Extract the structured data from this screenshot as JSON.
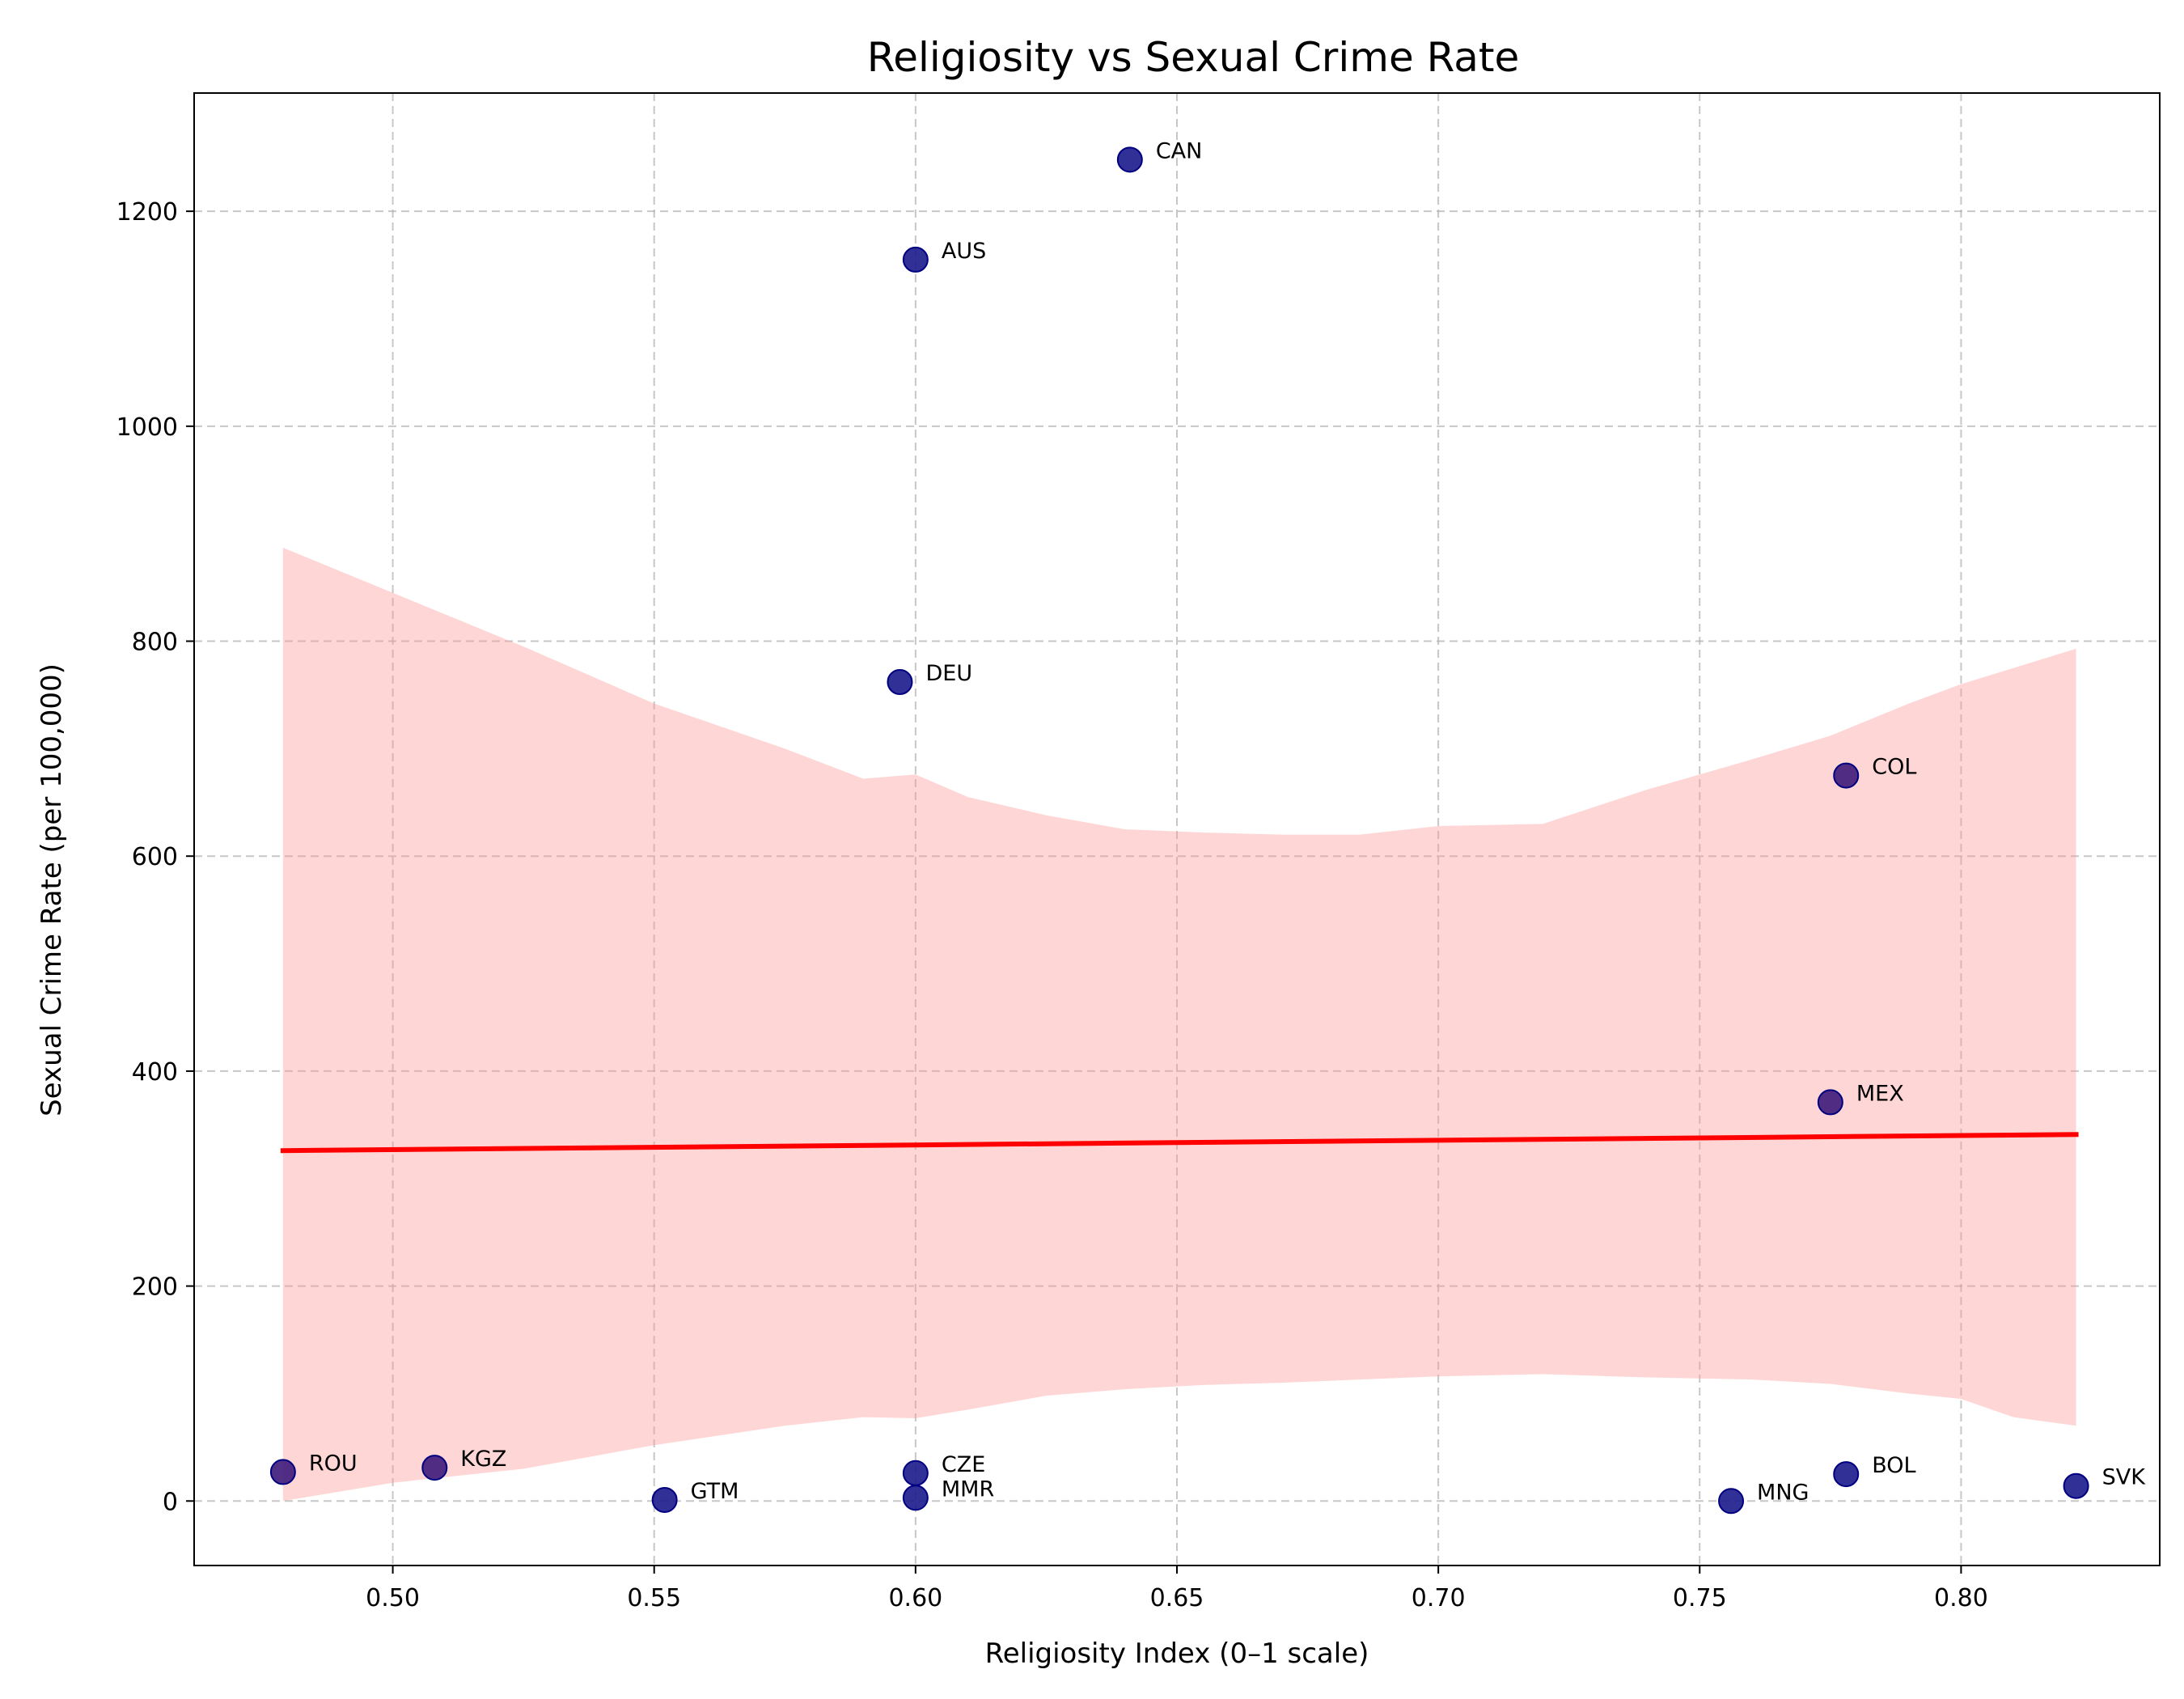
{
  "chart_data": {
    "type": "scatter",
    "title": "Religiosity vs Sexual Crime Rate",
    "xlabel": "Religiosity Index (0–1 scale)",
    "ylabel": "Sexual Crime Rate (per 100,000)",
    "xlim": [
      0.462,
      0.838
    ],
    "ylim": [
      -60,
      1310
    ],
    "xticks": [
      0.5,
      0.55,
      0.6,
      0.65,
      0.7,
      0.75,
      0.8
    ],
    "xtick_labels": [
      "0.50",
      "0.55",
      "0.60",
      "0.65",
      "0.70",
      "0.75",
      "0.80"
    ],
    "yticks": [
      0,
      200,
      400,
      600,
      800,
      1000,
      1200
    ],
    "ytick_labels": [
      "0",
      "200",
      "400",
      "600",
      "800",
      "1000",
      "1200"
    ],
    "grid": true,
    "points": [
      {
        "label": "CAN",
        "x": 0.641,
        "y": 1248,
        "color": "#1a1a8c"
      },
      {
        "label": "AUS",
        "x": 0.6,
        "y": 1155,
        "color": "#1a1a8c"
      },
      {
        "label": "DEU",
        "x": 0.597,
        "y": 762,
        "color": "#1a1a8c"
      },
      {
        "label": "COL",
        "x": 0.778,
        "y": 675,
        "color": "#3d1a7a"
      },
      {
        "label": "MEX",
        "x": 0.775,
        "y": 371,
        "color": "#3d1a7a"
      },
      {
        "label": "ROU",
        "x": 0.479,
        "y": 27,
        "color": "#3d1a7a"
      },
      {
        "label": "KGZ",
        "x": 0.508,
        "y": 31,
        "color": "#3d1a7a"
      },
      {
        "label": "GTM",
        "x": 0.552,
        "y": 1,
        "color": "#1a1a8c"
      },
      {
        "label": "CZE",
        "x": 0.6,
        "y": 26,
        "color": "#1a1a8c"
      },
      {
        "label": "MMR",
        "x": 0.6,
        "y": 3,
        "color": "#1a1a8c"
      },
      {
        "label": "MNG",
        "x": 0.756,
        "y": 0,
        "color": "#1a1a8c"
      },
      {
        "label": "BOL",
        "x": 0.778,
        "y": 25,
        "color": "#1a1a8c"
      },
      {
        "label": "SVK",
        "x": 0.822,
        "y": 14,
        "color": "#1a1a8c"
      }
    ],
    "trend_line": {
      "x": [
        0.479,
        0.822
      ],
      "y": [
        326,
        341
      ],
      "color": "#ff0000"
    },
    "confidence_band": {
      "color": "#ff9999",
      "x": [
        0.479,
        0.5,
        0.525,
        0.55,
        0.575,
        0.59,
        0.6,
        0.61,
        0.625,
        0.64,
        0.655,
        0.67,
        0.685,
        0.7,
        0.72,
        0.74,
        0.76,
        0.775,
        0.79,
        0.8,
        0.81,
        0.822
      ],
      "upper": [
        887,
        845,
        795,
        742,
        700,
        672,
        676,
        655,
        638,
        625,
        622,
        620,
        620,
        628,
        630,
        662,
        690,
        712,
        742,
        760,
        775,
        793
      ],
      "lower": [
        0,
        17,
        30,
        52,
        70,
        78,
        77,
        85,
        98,
        104,
        108,
        110,
        113,
        116,
        118,
        115,
        113,
        109,
        100,
        95,
        78,
        70
      ]
    }
  }
}
